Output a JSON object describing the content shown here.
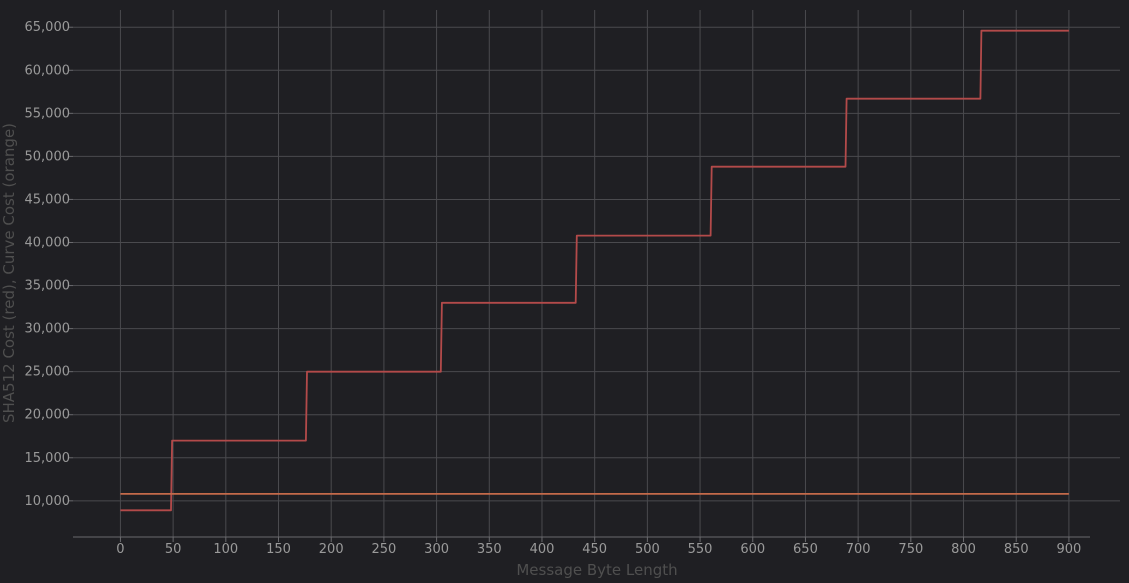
{
  "chart_data": {
    "type": "line",
    "title": "",
    "xlabel": "Message Byte Length",
    "ylabel": "SHA512 Cost (red), Curve Cost (orange)",
    "xlim": [
      -45,
      920
    ],
    "ylim": [
      5800,
      67000
    ],
    "x_ticks": [
      "0",
      "50",
      "100",
      "150",
      "200",
      "250",
      "300",
      "350",
      "400",
      "450",
      "500",
      "550",
      "600",
      "650",
      "700",
      "750",
      "800",
      "850",
      "900"
    ],
    "y_ticks": [
      "10,000",
      "15,000",
      "20,000",
      "25,000",
      "30,000",
      "35,000",
      "40,000",
      "45,000",
      "50,000",
      "55,000",
      "60,000",
      "65,000"
    ],
    "grid": true,
    "legend": "none",
    "series": [
      {
        "color": "#b34a4a",
        "x": [
          0,
          48,
          49,
          176,
          177,
          304,
          305,
          432,
          433,
          560,
          561,
          688,
          689,
          816,
          817,
          900
        ],
        "y": [
          8900,
          8900,
          17000,
          17000,
          25000,
          25000,
          33000,
          33000,
          40800,
          40800,
          48800,
          48800,
          56700,
          56700,
          64600,
          64600
        ]
      },
      {
        "color": "#c46a4a",
        "x": [
          0,
          900
        ],
        "y": [
          10800,
          10800
        ]
      }
    ]
  }
}
